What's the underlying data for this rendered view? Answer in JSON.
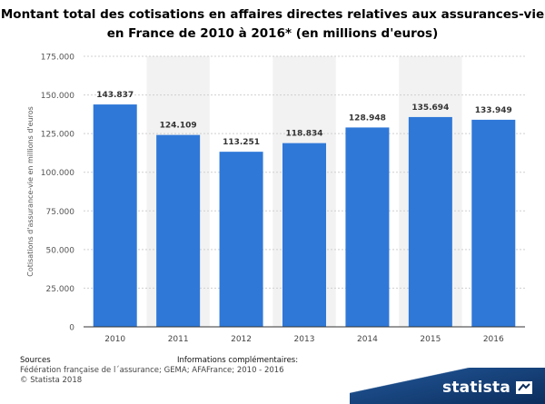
{
  "title": "Montant total des cotisations en affaires directes relatives aux assurances-vie en France de 2010 à 2016* (en millions d'euros)",
  "chart_data": {
    "type": "bar",
    "categories": [
      "2010",
      "2011",
      "2012",
      "2013",
      "2014",
      "2015",
      "2016"
    ],
    "values": [
      143837,
      124109,
      113251,
      118834,
      128948,
      135694,
      133949
    ],
    "value_labels": [
      "143.837",
      "124.109",
      "113.251",
      "118.834",
      "128.948",
      "135.694",
      "133.949"
    ],
    "ylabel": "Cotisations d'assurance-vie en millions d'euros",
    "xlabel": "",
    "ylim": [
      0,
      175000
    ],
    "yticks": [
      0,
      25000,
      50000,
      75000,
      100000,
      125000,
      150000,
      175000
    ],
    "ytick_labels": [
      "0",
      "25.000",
      "50.000",
      "75.000",
      "100.000",
      "125.000",
      "150.000",
      "175.000"
    ],
    "grid": true,
    "bar_color": "#2f78d8"
  },
  "footer": {
    "sources_heading": "Sources",
    "sources_text": "Fédération française de l´assurance; GEMA; AFAFrance; 2010 - 2016",
    "copyright": "© Statista 2018",
    "info_heading": "Informations complémentaires:"
  },
  "brand": {
    "name": "statista",
    "icon": "statista-logo-icon"
  }
}
